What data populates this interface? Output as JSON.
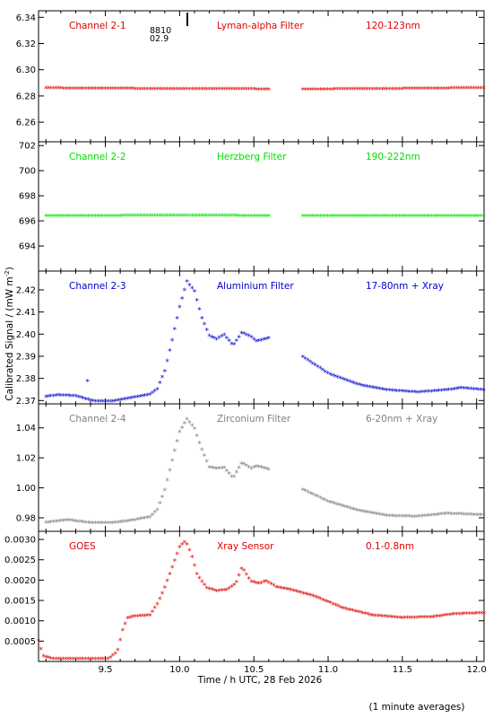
{
  "figure": {
    "xlabel": "Time / h UTC, 28 Feb 2026",
    "ylabel": "Calibrated Signal / (mW m",
    "ylabel_sup": "-2",
    "ylabel_end": ")",
    "footer": "(1 minute averages)",
    "marker_text": [
      "8810",
      "02.9"
    ]
  },
  "chart_data": [
    {
      "type": "scatter",
      "channel": "Channel 2-1",
      "filter": "Lyman-alpha Filter",
      "band": "120-123nm",
      "color": "#e00000",
      "xlim": [
        9.05,
        12.05
      ],
      "ylim": [
        6.245,
        6.345
      ],
      "yticks": [
        6.26,
        6.28,
        6.3,
        6.32,
        6.34
      ],
      "ytick_labels": [
        "6.26",
        "6.28",
        "6.30",
        "6.32",
        "6.34"
      ],
      "x_ranges": [
        [
          9.1,
          10.6
        ],
        [
          10.83,
          12.05
        ]
      ],
      "profile": [
        [
          9.1,
          6.2855
        ],
        [
          9.5,
          6.2853
        ],
        [
          10.0,
          6.2848
        ],
        [
          10.3,
          6.2851
        ],
        [
          10.6,
          6.2846
        ],
        [
          10.83,
          6.2846
        ],
        [
          11.5,
          6.2851
        ],
        [
          12.05,
          6.2857
        ]
      ]
    },
    {
      "type": "scatter",
      "channel": "Channel 2-2",
      "filter": "Herzberg Filter",
      "band": "190-222nm",
      "color": "#00dd00",
      "xlim": [
        9.05,
        12.05
      ],
      "ylim": [
        692.0,
        702.3
      ],
      "yticks": [
        694,
        696,
        698,
        700,
        702
      ],
      "ytick_labels": [
        "694",
        "696",
        "698",
        "700",
        "702"
      ],
      "x_ranges": [
        [
          9.1,
          10.6
        ],
        [
          10.83,
          12.05
        ]
      ],
      "profile": [
        [
          9.1,
          696.35
        ],
        [
          10.0,
          696.38
        ],
        [
          10.6,
          696.36
        ],
        [
          10.83,
          696.35
        ],
        [
          12.05,
          696.36
        ]
      ]
    },
    {
      "type": "scatter",
      "channel": "Channel 2-3",
      "filter": "Aluminium Filter",
      "band": "17-80nm + Xray",
      "color": "#0000cc",
      "xlim": [
        9.05,
        12.05
      ],
      "ylim": [
        2.3685,
        2.4285
      ],
      "yticks": [
        2.37,
        2.38,
        2.39,
        2.4,
        2.41,
        2.42
      ],
      "ytick_labels": [
        "2.37",
        "2.38",
        "2.39",
        "2.40",
        "2.41",
        "2.42"
      ],
      "x_ranges": [
        [
          9.1,
          10.6
        ],
        [
          10.83,
          12.05
        ]
      ],
      "profile": [
        [
          9.1,
          2.3715
        ],
        [
          9.18,
          2.3722
        ],
        [
          9.3,
          2.3718
        ],
        [
          9.42,
          2.3695
        ],
        [
          9.55,
          2.3695
        ],
        [
          9.7,
          2.3712
        ],
        [
          9.8,
          2.3725
        ],
        [
          9.85,
          2.375
        ],
        [
          9.9,
          2.383
        ],
        [
          9.95,
          2.397
        ],
        [
          10.0,
          2.412
        ],
        [
          10.05,
          2.4235
        ],
        [
          10.1,
          2.419
        ],
        [
          10.15,
          2.407
        ],
        [
          10.2,
          2.399
        ],
        [
          10.25,
          2.3975
        ],
        [
          10.3,
          2.3995
        ],
        [
          10.36,
          2.3945
        ],
        [
          10.42,
          2.4005
        ],
        [
          10.48,
          2.3985
        ],
        [
          10.52,
          2.3965
        ],
        [
          10.6,
          2.398
        ],
        [
          10.83,
          2.3895
        ],
        [
          11.0,
          2.382
        ],
        [
          11.2,
          2.377
        ],
        [
          11.4,
          2.3745
        ],
        [
          11.6,
          2.3735
        ],
        [
          11.8,
          2.3745
        ],
        [
          11.9,
          2.3755
        ],
        [
          12.05,
          2.3745
        ]
      ],
      "outliers": [
        [
          9.38,
          2.3785
        ]
      ]
    },
    {
      "type": "scatter",
      "channel": "Channel 2-4",
      "filter": "Zirconium Filter",
      "band": "6-20nm + Xray",
      "color": "#808080",
      "xlim": [
        9.05,
        12.05
      ],
      "ylim": [
        0.971,
        1.056
      ],
      "yticks": [
        0.98,
        1.0,
        1.02,
        1.04
      ],
      "ytick_labels": [
        "0.98",
        "1.00",
        "1.02",
        "1.04"
      ],
      "x_ranges": [
        [
          9.1,
          10.6
        ],
        [
          10.83,
          12.05
        ]
      ],
      "profile": [
        [
          9.1,
          0.9765
        ],
        [
          9.25,
          0.9782
        ],
        [
          9.4,
          0.9762
        ],
        [
          9.55,
          0.9762
        ],
        [
          9.7,
          0.9782
        ],
        [
          9.8,
          0.9802
        ],
        [
          9.85,
          0.985
        ],
        [
          9.9,
          0.998
        ],
        [
          9.95,
          1.018
        ],
        [
          10.0,
          1.037
        ],
        [
          10.05,
          1.0455
        ],
        [
          10.1,
          1.039
        ],
        [
          10.15,
          1.025
        ],
        [
          10.2,
          1.0135
        ],
        [
          10.25,
          1.0125
        ],
        [
          10.3,
          1.013
        ],
        [
          10.36,
          1.006
        ],
        [
          10.42,
          1.0165
        ],
        [
          10.48,
          1.0125
        ],
        [
          10.52,
          1.014
        ],
        [
          10.6,
          1.012
        ],
        [
          10.83,
          0.9985
        ],
        [
          11.0,
          0.9905
        ],
        [
          11.2,
          0.9845
        ],
        [
          11.4,
          0.981
        ],
        [
          11.6,
          0.9805
        ],
        [
          11.8,
          0.9825
        ],
        [
          12.05,
          0.9815
        ]
      ]
    },
    {
      "type": "scatter",
      "channel": "GOES",
      "filter": "Xray Sensor",
      "band": "0.1-0.8nm",
      "color": "#e00000",
      "xlim": [
        9.05,
        12.05
      ],
      "ylim": [
        0.0,
        0.0032
      ],
      "yticks": [
        0.0005,
        0.001,
        0.0015,
        0.002,
        0.0025,
        0.003
      ],
      "ytick_labels": [
        "0.0005",
        "0.0010",
        "0.0015",
        "0.0020",
        "0.0025",
        "0.0030"
      ],
      "xticks": [
        9.5,
        10.0,
        10.5,
        11.0,
        11.5,
        12.0
      ],
      "xtick_labels": [
        "9.5",
        "10.0",
        "10.5",
        "11.0",
        "11.5",
        "12.0"
      ],
      "x_ranges": [
        [
          9.05,
          12.05
        ]
      ],
      "profile": [
        [
          9.05,
          0.0005
        ],
        [
          9.08,
          0.00012
        ],
        [
          9.15,
          5e-05
        ],
        [
          9.3,
          5e-05
        ],
        [
          9.52,
          5e-05
        ],
        [
          9.58,
          0.00022
        ],
        [
          9.62,
          0.0008
        ],
        [
          9.65,
          0.00105
        ],
        [
          9.7,
          0.0011
        ],
        [
          9.8,
          0.00112
        ],
        [
          9.85,
          0.0014
        ],
        [
          9.9,
          0.0018
        ],
        [
          9.95,
          0.0023
        ],
        [
          10.0,
          0.0028
        ],
        [
          10.04,
          0.00295
        ],
        [
          10.08,
          0.0026
        ],
        [
          10.12,
          0.0021
        ],
        [
          10.18,
          0.0018
        ],
        [
          10.25,
          0.00172
        ],
        [
          10.32,
          0.00175
        ],
        [
          10.38,
          0.0019
        ],
        [
          10.42,
          0.0023
        ],
        [
          10.48,
          0.00195
        ],
        [
          10.54,
          0.0019
        ],
        [
          10.58,
          0.00197
        ],
        [
          10.65,
          0.00182
        ],
        [
          10.75,
          0.00175
        ],
        [
          10.9,
          0.0016
        ],
        [
          11.1,
          0.0013
        ],
        [
          11.3,
          0.00112
        ],
        [
          11.5,
          0.00106
        ],
        [
          11.7,
          0.00108
        ],
        [
          11.85,
          0.00115
        ],
        [
          12.05,
          0.00118
        ]
      ]
    }
  ]
}
